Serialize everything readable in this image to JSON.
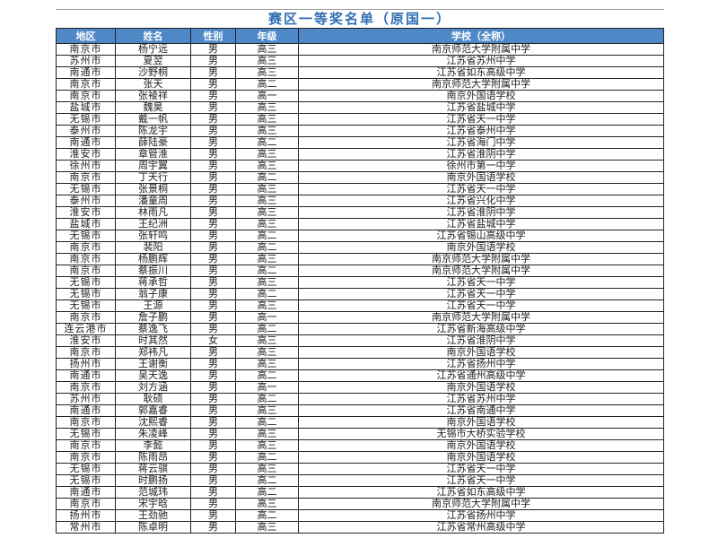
{
  "title": "赛区一等奖名单（原国一）",
  "colors": {
    "header_bg": "#4f88c6",
    "title": "#2f6db3"
  },
  "headers": [
    "地区",
    "姓名",
    "性别",
    "年级",
    "学校（全称）"
  ],
  "rows": [
    [
      "南京市",
      "杨宁远",
      "男",
      "高三",
      "南京师范大学附属中学"
    ],
    [
      "苏州市",
      "夏翌",
      "男",
      "高三",
      "江苏省苏州中学"
    ],
    [
      "南通市",
      "沙野桐",
      "男",
      "高三",
      "江苏省如东高级中学"
    ],
    [
      "南京市",
      "张天",
      "男",
      "高二",
      "南京师范大学附属中学"
    ],
    [
      "南京市",
      "张祾祥",
      "男",
      "高一",
      "南京外国语学校"
    ],
    [
      "盐城市",
      "魏昊",
      "男",
      "高三",
      "江苏省盐城中学"
    ],
    [
      "无锡市",
      "戴一帆",
      "男",
      "高三",
      "江苏省天一中学"
    ],
    [
      "泰州市",
      "陈龙宇",
      "男",
      "高三",
      "江苏省泰州中学"
    ],
    [
      "南通市",
      "薛陆豪",
      "男",
      "高二",
      "江苏省海门中学"
    ],
    [
      "淮安市",
      "章管淮",
      "男",
      "高三",
      "江苏省淮阴中学"
    ],
    [
      "徐州市",
      "周宇翼",
      "男",
      "高三",
      "徐州市第一中学"
    ],
    [
      "南京市",
      "丁天行",
      "男",
      "高二",
      "南京外国语学校"
    ],
    [
      "无锡市",
      "张景桐",
      "男",
      "高三",
      "江苏省天一中学"
    ],
    [
      "泰州市",
      "潘童周",
      "男",
      "高三",
      "江苏省兴化中学"
    ],
    [
      "淮安市",
      "林雨凡",
      "男",
      "高三",
      "江苏省淮阴中学"
    ],
    [
      "盐城市",
      "王纪洲",
      "男",
      "高三",
      "江苏省盐城中学"
    ],
    [
      "无锡市",
      "张轩鸣",
      "男",
      "高二",
      "江苏省锡山高级中学"
    ],
    [
      "南京市",
      "裴阳",
      "男",
      "高二",
      "南京外国语学校"
    ],
    [
      "南京市",
      "杨鹏辉",
      "男",
      "高三",
      "南京师范大学附属中学"
    ],
    [
      "南京市",
      "蔡振川",
      "男",
      "高二",
      "南京师范大学附属中学"
    ],
    [
      "无锡市",
      "蒋承哲",
      "男",
      "高三",
      "江苏省天一中学"
    ],
    [
      "无锡市",
      "翁子康",
      "男",
      "高二",
      "江苏省天一中学"
    ],
    [
      "无锡市",
      "王源",
      "男",
      "高三",
      "江苏省天一中学"
    ],
    [
      "南京市",
      "詹子鹏",
      "男",
      "高一",
      "南京师范大学附属中学"
    ],
    [
      "连云港市",
      "蔡逸飞",
      "男",
      "高二",
      "江苏省新海高级中学"
    ],
    [
      "淮安市",
      "时其然",
      "女",
      "高三",
      "江苏省淮阴中学"
    ],
    [
      "南京市",
      "郑袆凡",
      "男",
      "高三",
      "南京外国语学校"
    ],
    [
      "扬州市",
      "王谢衡",
      "男",
      "高三",
      "江苏省扬州中学"
    ],
    [
      "南通市",
      "吴天逸",
      "男",
      "高二",
      "江苏省通州高级中学"
    ],
    [
      "南京市",
      "刘方涵",
      "男",
      "高一",
      "南京外国语学校"
    ],
    [
      "苏州市",
      "耿硕",
      "男",
      "高二",
      "江苏省苏州中学"
    ],
    [
      "南通市",
      "郭嘉睿",
      "男",
      "高三",
      "江苏省南通中学"
    ],
    [
      "南京市",
      "沈熙睿",
      "男",
      "高二",
      "南京外国语学校"
    ],
    [
      "无锡市",
      "朱凌峰",
      "男",
      "高三",
      "无锡市大桥实验学校"
    ],
    [
      "南京市",
      "李懿",
      "男",
      "高三",
      "南京外国语学校"
    ],
    [
      "南京市",
      "陈雨昂",
      "男",
      "高二",
      "南京外国语学校"
    ],
    [
      "无锡市",
      "蒋云骐",
      "男",
      "高三",
      "江苏省天一中学"
    ],
    [
      "无锡市",
      "时鹏扬",
      "男",
      "高二",
      "江苏省天一中学"
    ],
    [
      "南通市",
      "范城玮",
      "男",
      "高二",
      "江苏省如东高级中学"
    ],
    [
      "南京市",
      "宋宇晗",
      "男",
      "高三",
      "南京师范大学附属中学"
    ],
    [
      "扬州市",
      "王劲驰",
      "男",
      "高二",
      "江苏省扬州中学"
    ],
    [
      "常州市",
      "陈卓明",
      "男",
      "高三",
      "江苏省常州高级中学"
    ]
  ]
}
